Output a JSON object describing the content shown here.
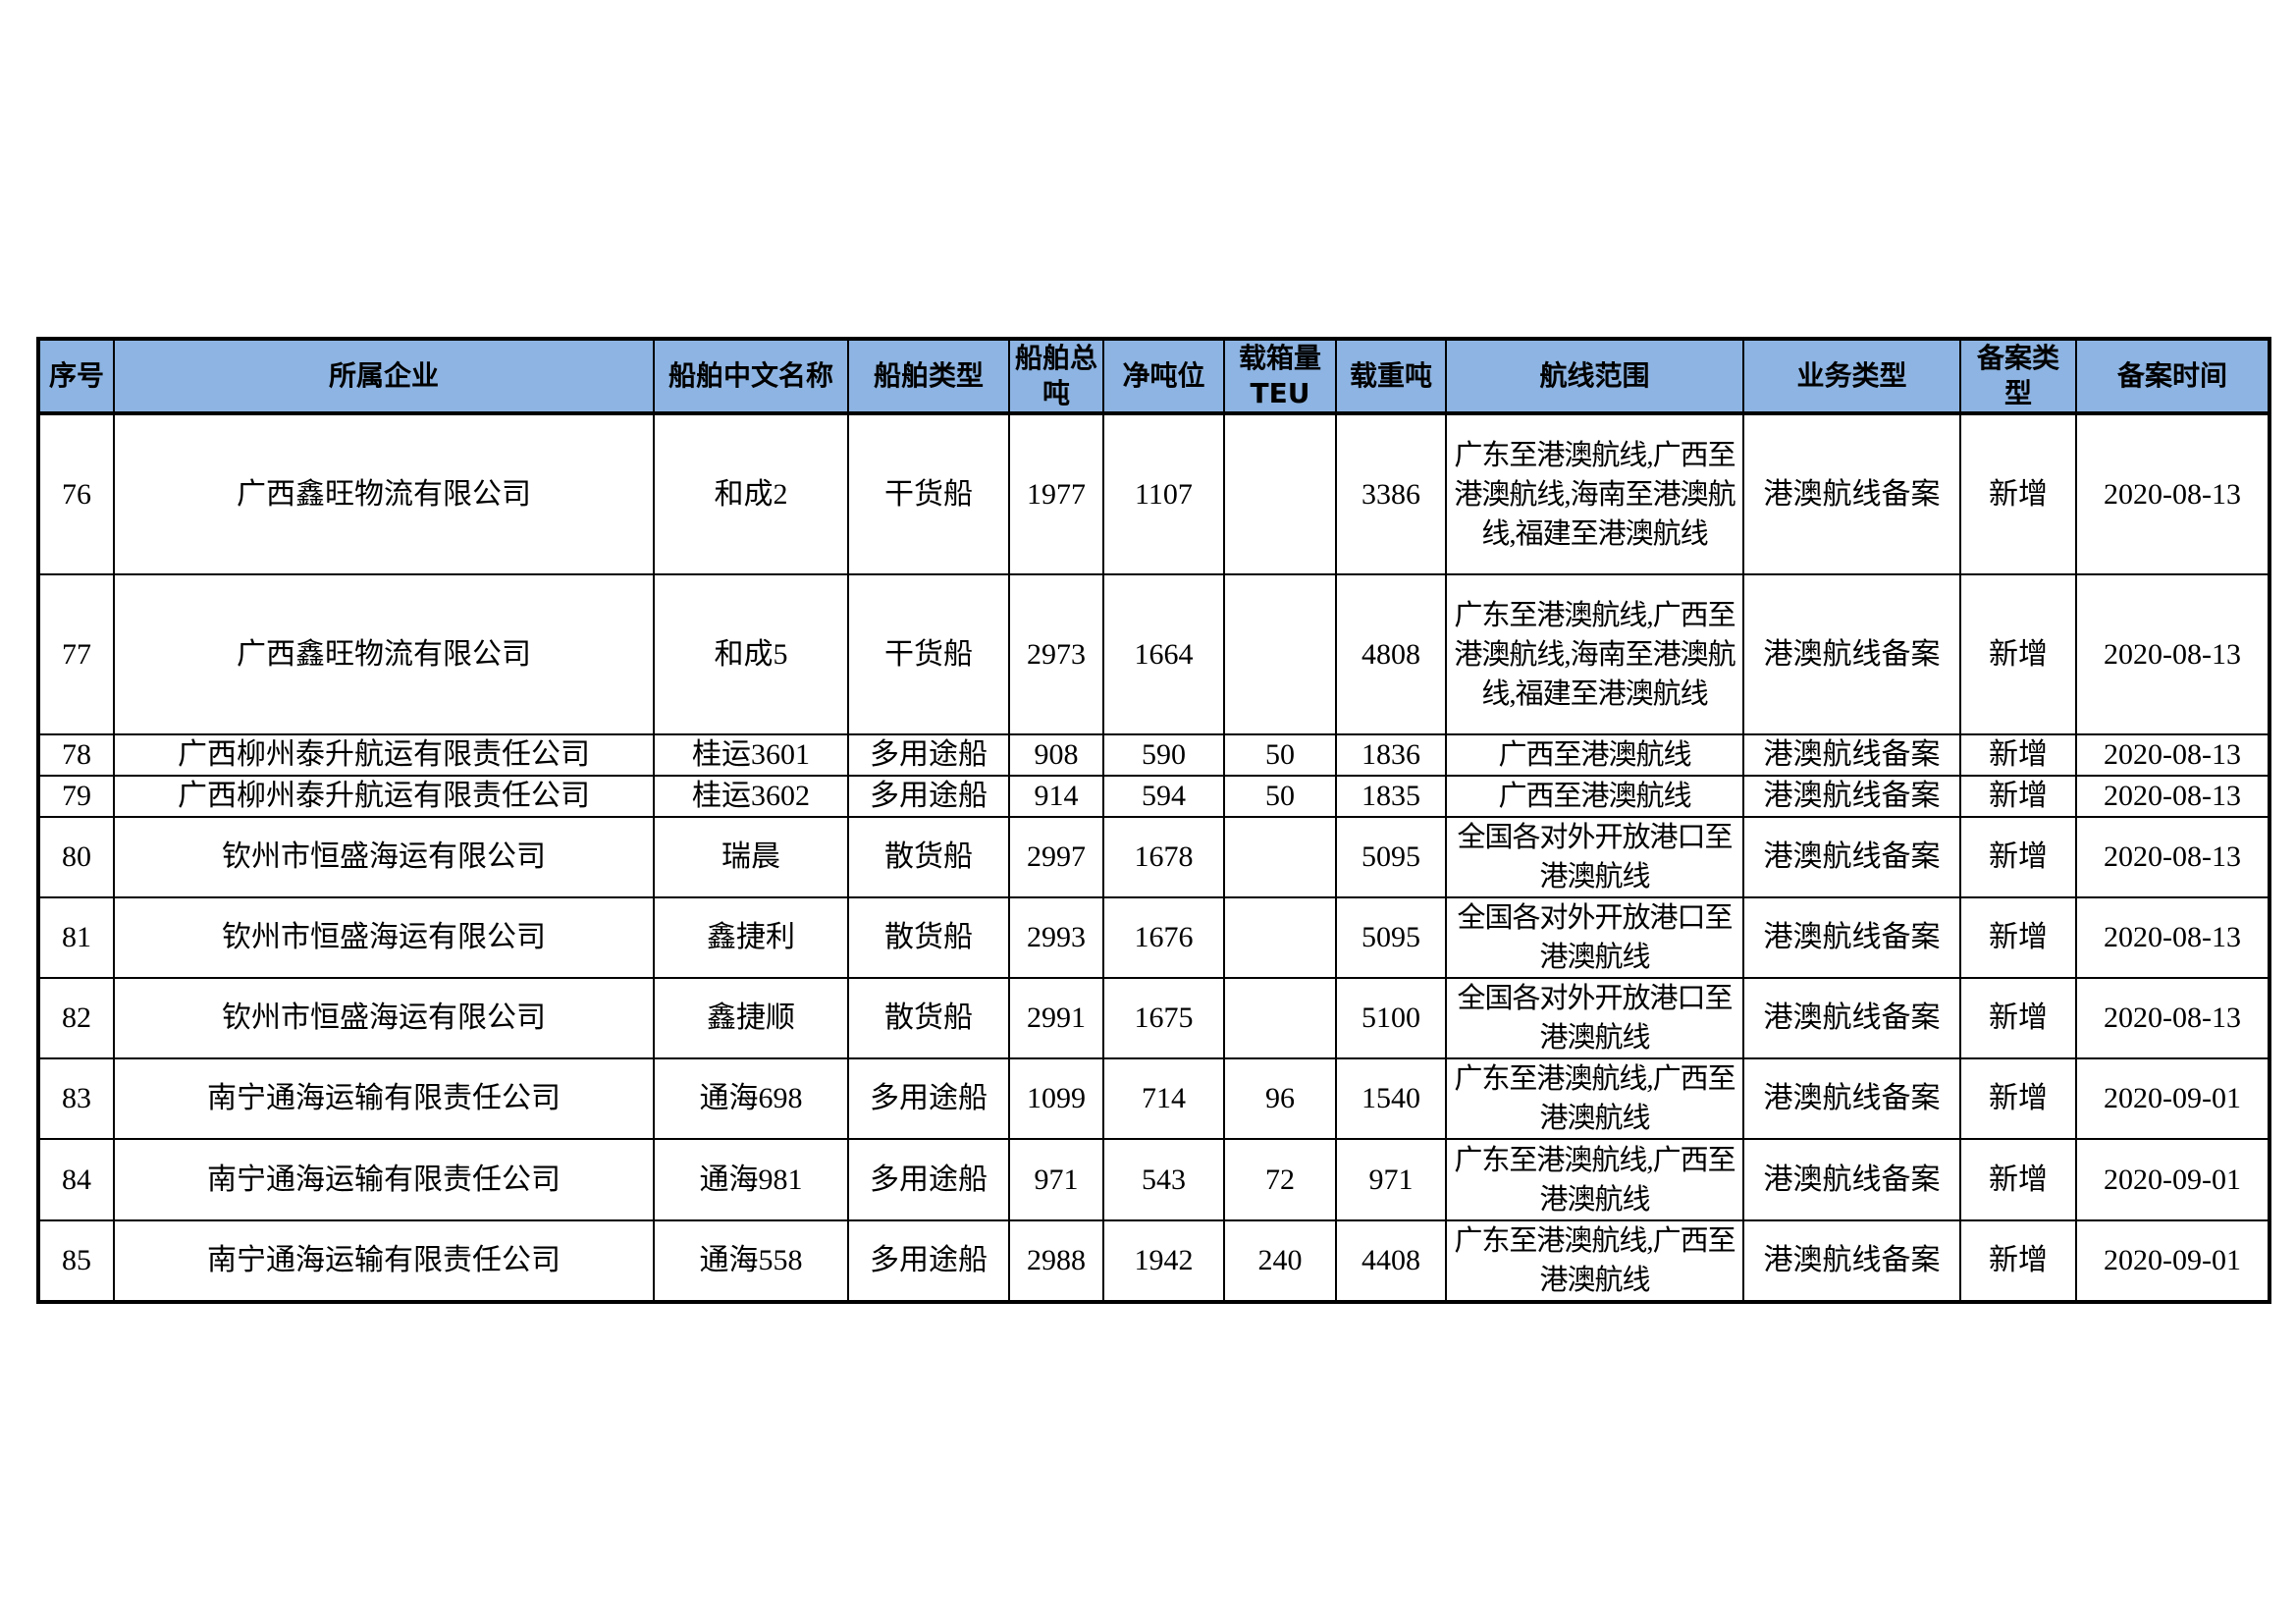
{
  "header_color": "#8db4e2",
  "columns": [
    "序号",
    "所属企业",
    "船舶中文名称",
    "船舶类型",
    "船舶总吨",
    "净吨位",
    "载箱量TEU",
    "载重吨",
    "航线范围",
    "业务类型",
    "备案类型",
    "备案时间"
  ],
  "rows": [
    [
      "76",
      "广西鑫旺物流有限公司",
      "和成2",
      "干货船",
      "1977",
      "1107",
      "",
      "3386",
      "广东至港澳航线,广西至港澳航线,海南至港澳航线,福建至港澳航线",
      "港澳航线备案",
      "新增",
      "2020-08-13"
    ],
    [
      "77",
      "广西鑫旺物流有限公司",
      "和成5",
      "干货船",
      "2973",
      "1664",
      "",
      "4808",
      "广东至港澳航线,广西至港澳航线,海南至港澳航线,福建至港澳航线",
      "港澳航线备案",
      "新增",
      "2020-08-13"
    ],
    [
      "78",
      "广西柳州泰升航运有限责任公司",
      "桂运3601",
      "多用途船",
      "908",
      "590",
      "50",
      "1836",
      "广西至港澳航线",
      "港澳航线备案",
      "新增",
      "2020-08-13"
    ],
    [
      "79",
      "广西柳州泰升航运有限责任公司",
      "桂运3602",
      "多用途船",
      "914",
      "594",
      "50",
      "1835",
      "广西至港澳航线",
      "港澳航线备案",
      "新增",
      "2020-08-13"
    ],
    [
      "80",
      "钦州市恒盛海运有限公司",
      "瑞晨",
      "散货船",
      "2997",
      "1678",
      "",
      "5095",
      "全国各对外开放港口至港澳航线",
      "港澳航线备案",
      "新增",
      "2020-08-13"
    ],
    [
      "81",
      "钦州市恒盛海运有限公司",
      "鑫捷利",
      "散货船",
      "2993",
      "1676",
      "",
      "5095",
      "全国各对外开放港口至港澳航线",
      "港澳航线备案",
      "新增",
      "2020-08-13"
    ],
    [
      "82",
      "钦州市恒盛海运有限公司",
      "鑫捷顺",
      "散货船",
      "2991",
      "1675",
      "",
      "5100",
      "全国各对外开放港口至港澳航线",
      "港澳航线备案",
      "新增",
      "2020-08-13"
    ],
    [
      "83",
      "南宁通海运输有限责任公司",
      "通海698",
      "多用途船",
      "1099",
      "714",
      "96",
      "1540",
      "广东至港澳航线,广西至港澳航线",
      "港澳航线备案",
      "新增",
      "2020-09-01"
    ],
    [
      "84",
      "南宁通海运输有限责任公司",
      "通海981",
      "多用途船",
      "971",
      "543",
      "72",
      "971",
      "广东至港澳航线,广西至港澳航线",
      "港澳航线备案",
      "新增",
      "2020-09-01"
    ],
    [
      "85",
      "南宁通海运输有限责任公司",
      "通海558",
      "多用途船",
      "2988",
      "1942",
      "240",
      "4408",
      "广东至港澳航线,广西至港澳航线",
      "港澳航线备案",
      "新增",
      "2020-09-01"
    ]
  ]
}
